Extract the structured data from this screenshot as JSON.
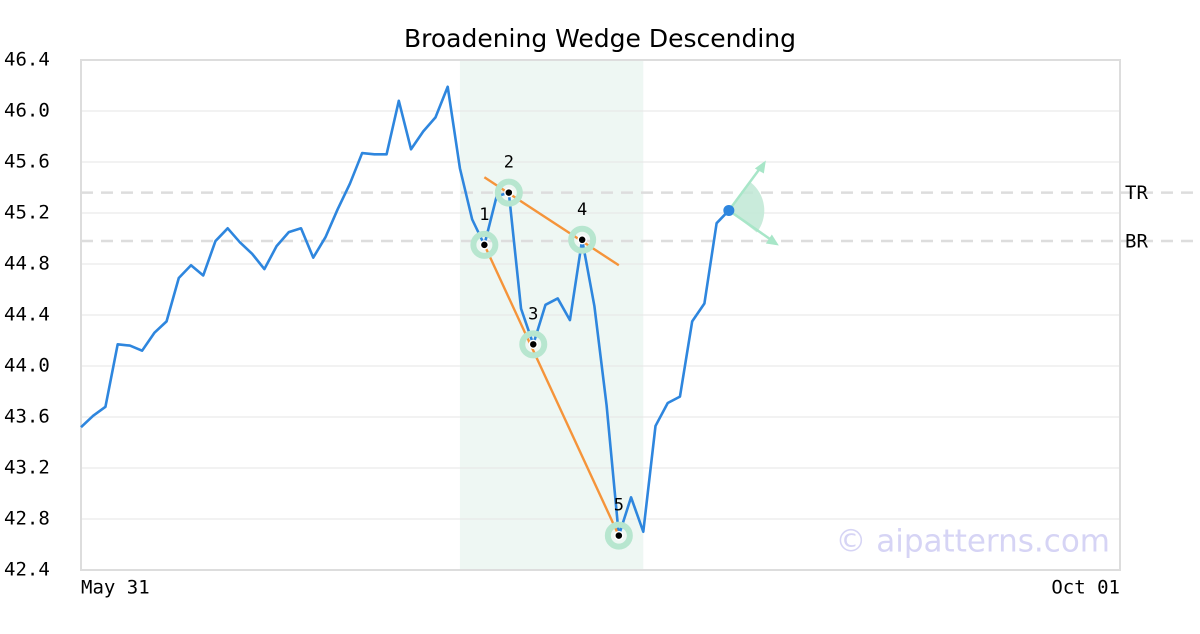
{
  "chart_data": {
    "type": "line",
    "title": "Broadening Wedge Descending",
    "watermark": "© aipatterns.com",
    "color": "#2e86de",
    "categories": [
      "May 31",
      null,
      null,
      null,
      null,
      null,
      null,
      null,
      null,
      null,
      null,
      null,
      null,
      null,
      null,
      null,
      null,
      null,
      null,
      null,
      null,
      null,
      null,
      null,
      null,
      null,
      null,
      null,
      null,
      null,
      null,
      null,
      null,
      null,
      null,
      null,
      null,
      null,
      null,
      null,
      null,
      null,
      null,
      null,
      null,
      null,
      null,
      null,
      null,
      null,
      null,
      null,
      null,
      null,
      null,
      null,
      null,
      null,
      null,
      null,
      null,
      null,
      null,
      null,
      null,
      null,
      null,
      null,
      null,
      null,
      null,
      null,
      null,
      null,
      null,
      null,
      null,
      null,
      null,
      null,
      null,
      null,
      null,
      null,
      null,
      "Oct 01"
    ],
    "values": [
      43.52,
      43.61,
      43.68,
      44.17,
      44.16,
      44.12,
      44.26,
      44.35,
      44.69,
      44.79,
      44.71,
      44.98,
      45.08,
      44.97,
      44.88,
      44.76,
      44.94,
      45.05,
      45.08,
      44.85,
      45.01,
      45.23,
      45.43,
      45.67,
      45.66,
      45.66,
      46.08,
      45.7,
      45.84,
      45.95,
      46.19,
      45.55,
      45.15,
      44.95,
      45.33,
      45.36,
      44.45,
      44.17,
      44.48,
      44.53,
      44.36,
      44.99,
      44.47,
      43.69,
      42.67,
      42.97,
      42.7,
      43.53,
      43.71,
      43.76,
      44.35,
      44.49,
      45.12,
      45.22,
      null,
      null,
      null,
      null,
      null,
      null,
      null,
      null,
      null,
      null,
      null,
      null,
      null,
      null,
      null,
      null,
      null,
      null,
      null,
      null,
      null,
      null,
      null,
      null,
      null,
      null,
      null,
      null,
      null,
      null,
      null,
      null
    ],
    "ylim": [
      42.4,
      46.4
    ],
    "yticks": [
      42.4,
      42.8,
      43.2,
      43.6,
      {
        "value": 44,
        "label": "44.0"
      },
      44.4,
      44.8,
      45.2,
      45.6,
      {
        "value": 46,
        "label": "46.0"
      },
      46.4
    ],
    "grid": true,
    "highlight": [
      31,
      46
    ],
    "pattern_points": [
      {
        "label": "1",
        "x": 33,
        "value": 44.95
      },
      {
        "label": "2",
        "x": 35,
        "value": 45.36
      },
      {
        "label": "3",
        "x": 37,
        "value": 44.17
      },
      {
        "label": "4",
        "x": 41,
        "value": 44.99
      },
      {
        "label": "5",
        "x": 44,
        "value": 42.67
      }
    ],
    "trend_lines": [
      {
        "color": "#f5943a",
        "x": [
          33,
          44
        ],
        "values": [
          45.48,
          44.79
        ]
      },
      {
        "color": "#f5943a",
        "x": [
          33,
          44
        ],
        "values": [
          44.95,
          42.67
        ]
      }
    ],
    "levels": [
      {
        "label": "TR",
        "value": 45.36
      },
      {
        "label": "BR",
        "value": 44.98
      }
    ]
  }
}
